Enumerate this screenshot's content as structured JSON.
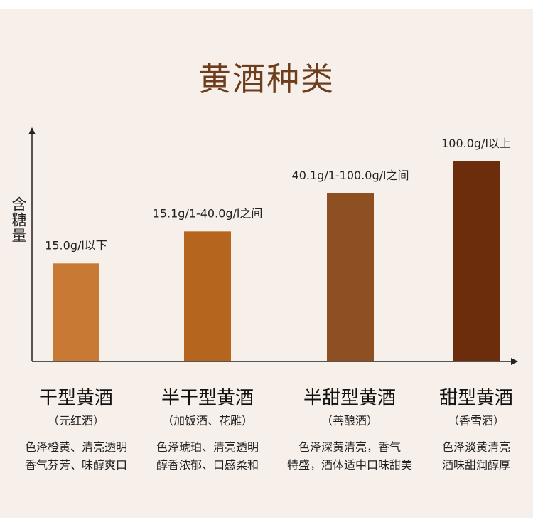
{
  "title": "黄酒种类",
  "chart_data": {
    "type": "bar",
    "ylabel": "含糖量",
    "ylim": [
      0,
      120
    ],
    "colors": [
      "#c87a35",
      "#b5651d",
      "#8e4f23",
      "#6b2d0c"
    ],
    "categories": [
      {
        "name": "干型黄酒",
        "alias": "（元红酒）",
        "desc1": "色泽橙黄、清亮透明",
        "desc2": "香气芬芳、味醇爽口"
      },
      {
        "name": "半干型黄酒",
        "alias": "（加饭酒、花雕）",
        "desc1": "色泽琥珀、清亮透明",
        "desc2": "醇香浓郁、口感柔和"
      },
      {
        "name": "半甜型黄酒",
        "alias": "（善酿酒）",
        "desc1": "色泽深黄清亮，香气",
        "desc2": "特盛，酒体适中口味甜美"
      },
      {
        "name": "甜型黄酒",
        "alias": "（香雪酒）",
        "desc1": "色泽淡黄清亮",
        "desc2": "酒味甜润醇厚"
      }
    ],
    "values": [
      49,
      65,
      84,
      100
    ],
    "data_labels": [
      "15.0g/l以下",
      "15.1g/1-40.0g/l之间",
      "40.1g/1-100.0g/l之间",
      "100.0g/l以上"
    ]
  }
}
